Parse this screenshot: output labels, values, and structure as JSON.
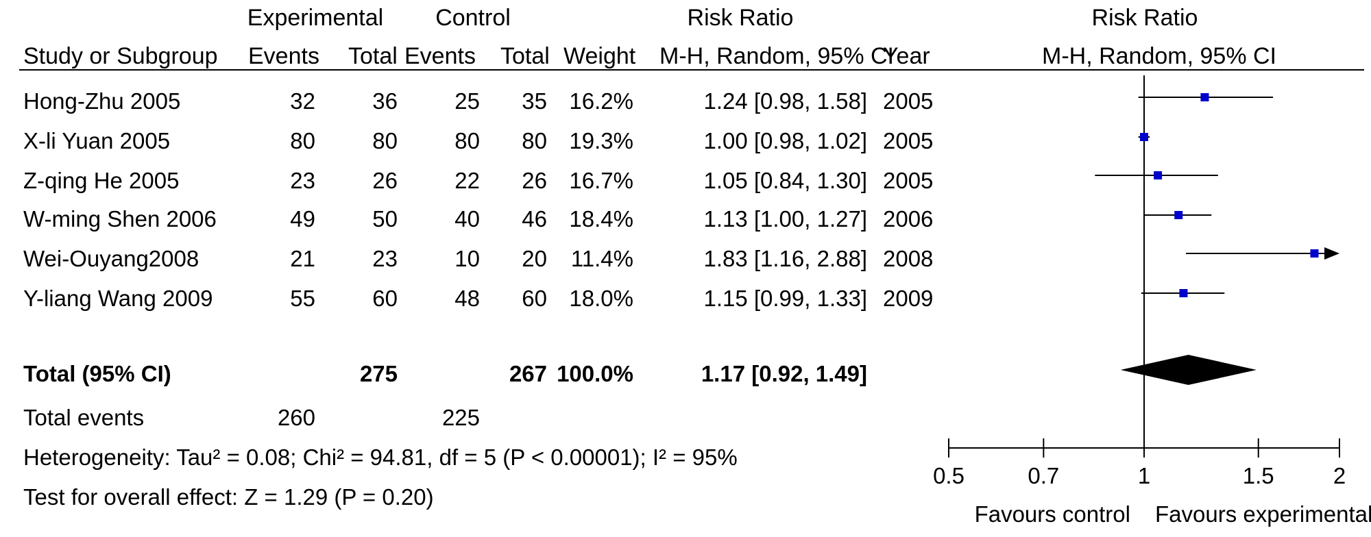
{
  "header": {
    "experimental": "Experimental",
    "control": "Control",
    "risk_ratio": "Risk Ratio",
    "risk_ratio_plot": "Risk Ratio",
    "study": "Study or Subgroup",
    "events": "Events",
    "total": "Total",
    "events2": "Events",
    "total2": "Total",
    "weight": "Weight",
    "method": "M-H, Random, 95% CI",
    "year": "Year",
    "method_plot": "M-H, Random, 95% CI"
  },
  "studies": [
    {
      "name": "Hong-Zhu 2005",
      "exp_events": "32",
      "exp_total": "36",
      "ctl_events": "25",
      "ctl_total": "35",
      "weight": "16.2%",
      "ci": "1.24 [0.98, 1.58]",
      "year": "2005"
    },
    {
      "name": "X-li Yuan 2005",
      "exp_events": "80",
      "exp_total": "80",
      "ctl_events": "80",
      "ctl_total": "80",
      "weight": "19.3%",
      "ci": "1.00 [0.98, 1.02]",
      "year": "2005"
    },
    {
      "name": "Z-qing He 2005",
      "exp_events": "23",
      "exp_total": "26",
      "ctl_events": "22",
      "ctl_total": "26",
      "weight": "16.7%",
      "ci": "1.05 [0.84, 1.30]",
      "year": "2005"
    },
    {
      "name": "W-ming Shen 2006",
      "exp_events": "49",
      "exp_total": "50",
      "ctl_events": "40",
      "ctl_total": "46",
      "weight": "18.4%",
      "ci": "1.13 [1.00, 1.27]",
      "year": "2006"
    },
    {
      "name": "Wei-Ouyang2008",
      "exp_events": "21",
      "exp_total": "23",
      "ctl_events": "10",
      "ctl_total": "20",
      "weight": "11.4%",
      "ci": "1.83 [1.16, 2.88]",
      "year": "2008"
    },
    {
      "name": "Y-liang Wang 2009",
      "exp_events": "55",
      "exp_total": "60",
      "ctl_events": "48",
      "ctl_total": "60",
      "weight": "18.0%",
      "ci": "1.15 [0.99, 1.33]",
      "year": "2009"
    }
  ],
  "total": {
    "label": "Total (95% CI)",
    "exp_total": "275",
    "ctl_total": "267",
    "weight": "100.0%",
    "ci": "1.17 [0.92, 1.49]"
  },
  "total_events": {
    "label": "Total events",
    "exp": "260",
    "ctl": "225"
  },
  "heterogeneity": "Heterogeneity: Tau² = 0.08; Chi² = 94.81, df = 5 (P < 0.00001); I² = 95%",
  "overall_effect": "Test for overall effect: Z = 1.29 (P = 0.20)",
  "colors": {
    "marker": "#0000cc",
    "line": "#000000"
  },
  "chart_data": {
    "type": "forest",
    "measure": "Risk Ratio",
    "method": "M-H, Random, 95% CI",
    "x_scale": "log",
    "xlim": [
      0.5,
      2
    ],
    "ticks": [
      0.5,
      0.7,
      1,
      1.5,
      2
    ],
    "tick_labels": [
      "0.5",
      "0.7",
      "1",
      "1.5",
      "2"
    ],
    "reference_line": 1,
    "x_left_label": "Favours control",
    "x_right_label": "Favours experimental",
    "points": [
      {
        "study": "Hong-Zhu 2005",
        "rr": 1.24,
        "lo": 0.98,
        "hi": 1.58,
        "weight": 16.2
      },
      {
        "study": "X-li Yuan 2005",
        "rr": 1.0,
        "lo": 0.98,
        "hi": 1.02,
        "weight": 19.3
      },
      {
        "study": "Z-qing He 2005",
        "rr": 1.05,
        "lo": 0.84,
        "hi": 1.3,
        "weight": 16.7
      },
      {
        "study": "W-ming Shen 2006",
        "rr": 1.13,
        "lo": 1.0,
        "hi": 1.27,
        "weight": 18.4
      },
      {
        "study": "Wei-Ouyang2008",
        "rr": 1.83,
        "lo": 1.16,
        "hi": 2.88,
        "weight": 11.4
      },
      {
        "study": "Y-liang Wang 2009",
        "rr": 1.15,
        "lo": 0.99,
        "hi": 1.33,
        "weight": 18.0
      }
    ],
    "pooled": {
      "rr": 1.17,
      "lo": 0.92,
      "hi": 1.49
    }
  }
}
